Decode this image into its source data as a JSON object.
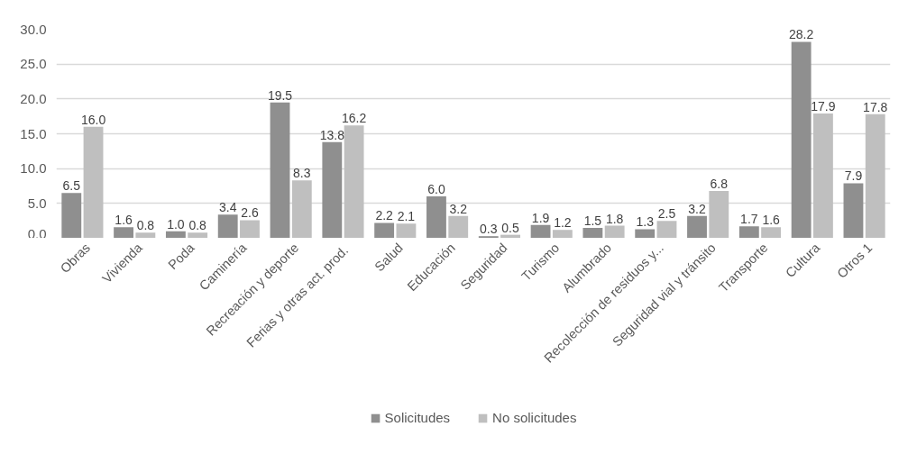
{
  "chart_data": {
    "type": "bar",
    "categories": [
      "Obras",
      "Vivienda",
      "Poda",
      "Caminería",
      "Recreación y deporte",
      "Ferias  y otras act. prod.",
      "Salud",
      "Educación",
      "Seguridad",
      "Turismo",
      "Alumbrado",
      "Recolección de residuos y...",
      "Seguridad vial y tránsito",
      "Transporte",
      "Cultura",
      "Otros 1"
    ],
    "series": [
      {
        "name": "Solicitudes",
        "color": "#8f8f8f",
        "values": [
          6.5,
          1.6,
          1.0,
          3.4,
          19.5,
          13.8,
          2.2,
          6.0,
          0.3,
          1.9,
          1.5,
          1.3,
          3.2,
          1.7,
          28.2,
          7.9
        ],
        "value_labels": [
          "6.5",
          "1.6",
          "1.0",
          "3.4",
          "19.5",
          "13.8",
          "2.2",
          "6.0",
          "0.3",
          "1.9",
          "1.5",
          "1.3",
          "3.2",
          "1.7",
          "28.2",
          "7.9"
        ]
      },
      {
        "name": "No solicitudes",
        "color": "#bfbfbf",
        "values": [
          16.0,
          0.8,
          0.8,
          2.6,
          8.3,
          16.2,
          2.1,
          3.2,
          0.5,
          1.2,
          1.8,
          2.5,
          6.8,
          1.6,
          17.9,
          17.8
        ],
        "value_labels": [
          "16.0",
          "0.8",
          "0.8",
          "2.6",
          "8.3",
          "16.2",
          "2.1",
          "3.2",
          "0.5",
          "1.2",
          "1.8",
          "2.5",
          "6.8",
          "1.6",
          "17.9",
          "17.8"
        ]
      }
    ],
    "ylim": [
      0,
      30
    ],
    "yticks": [
      {
        "value": 0,
        "label": "0.0"
      },
      {
        "value": 5,
        "label": "5.0"
      },
      {
        "value": 10,
        "label": "10.0"
      },
      {
        "value": 15,
        "label": "15.0"
      },
      {
        "value": 20,
        "label": "20.0"
      },
      {
        "value": 25,
        "label": "25.0"
      },
      {
        "value": 30,
        "label": "30.0"
      }
    ],
    "grid": "y",
    "legend": "bottom"
  }
}
